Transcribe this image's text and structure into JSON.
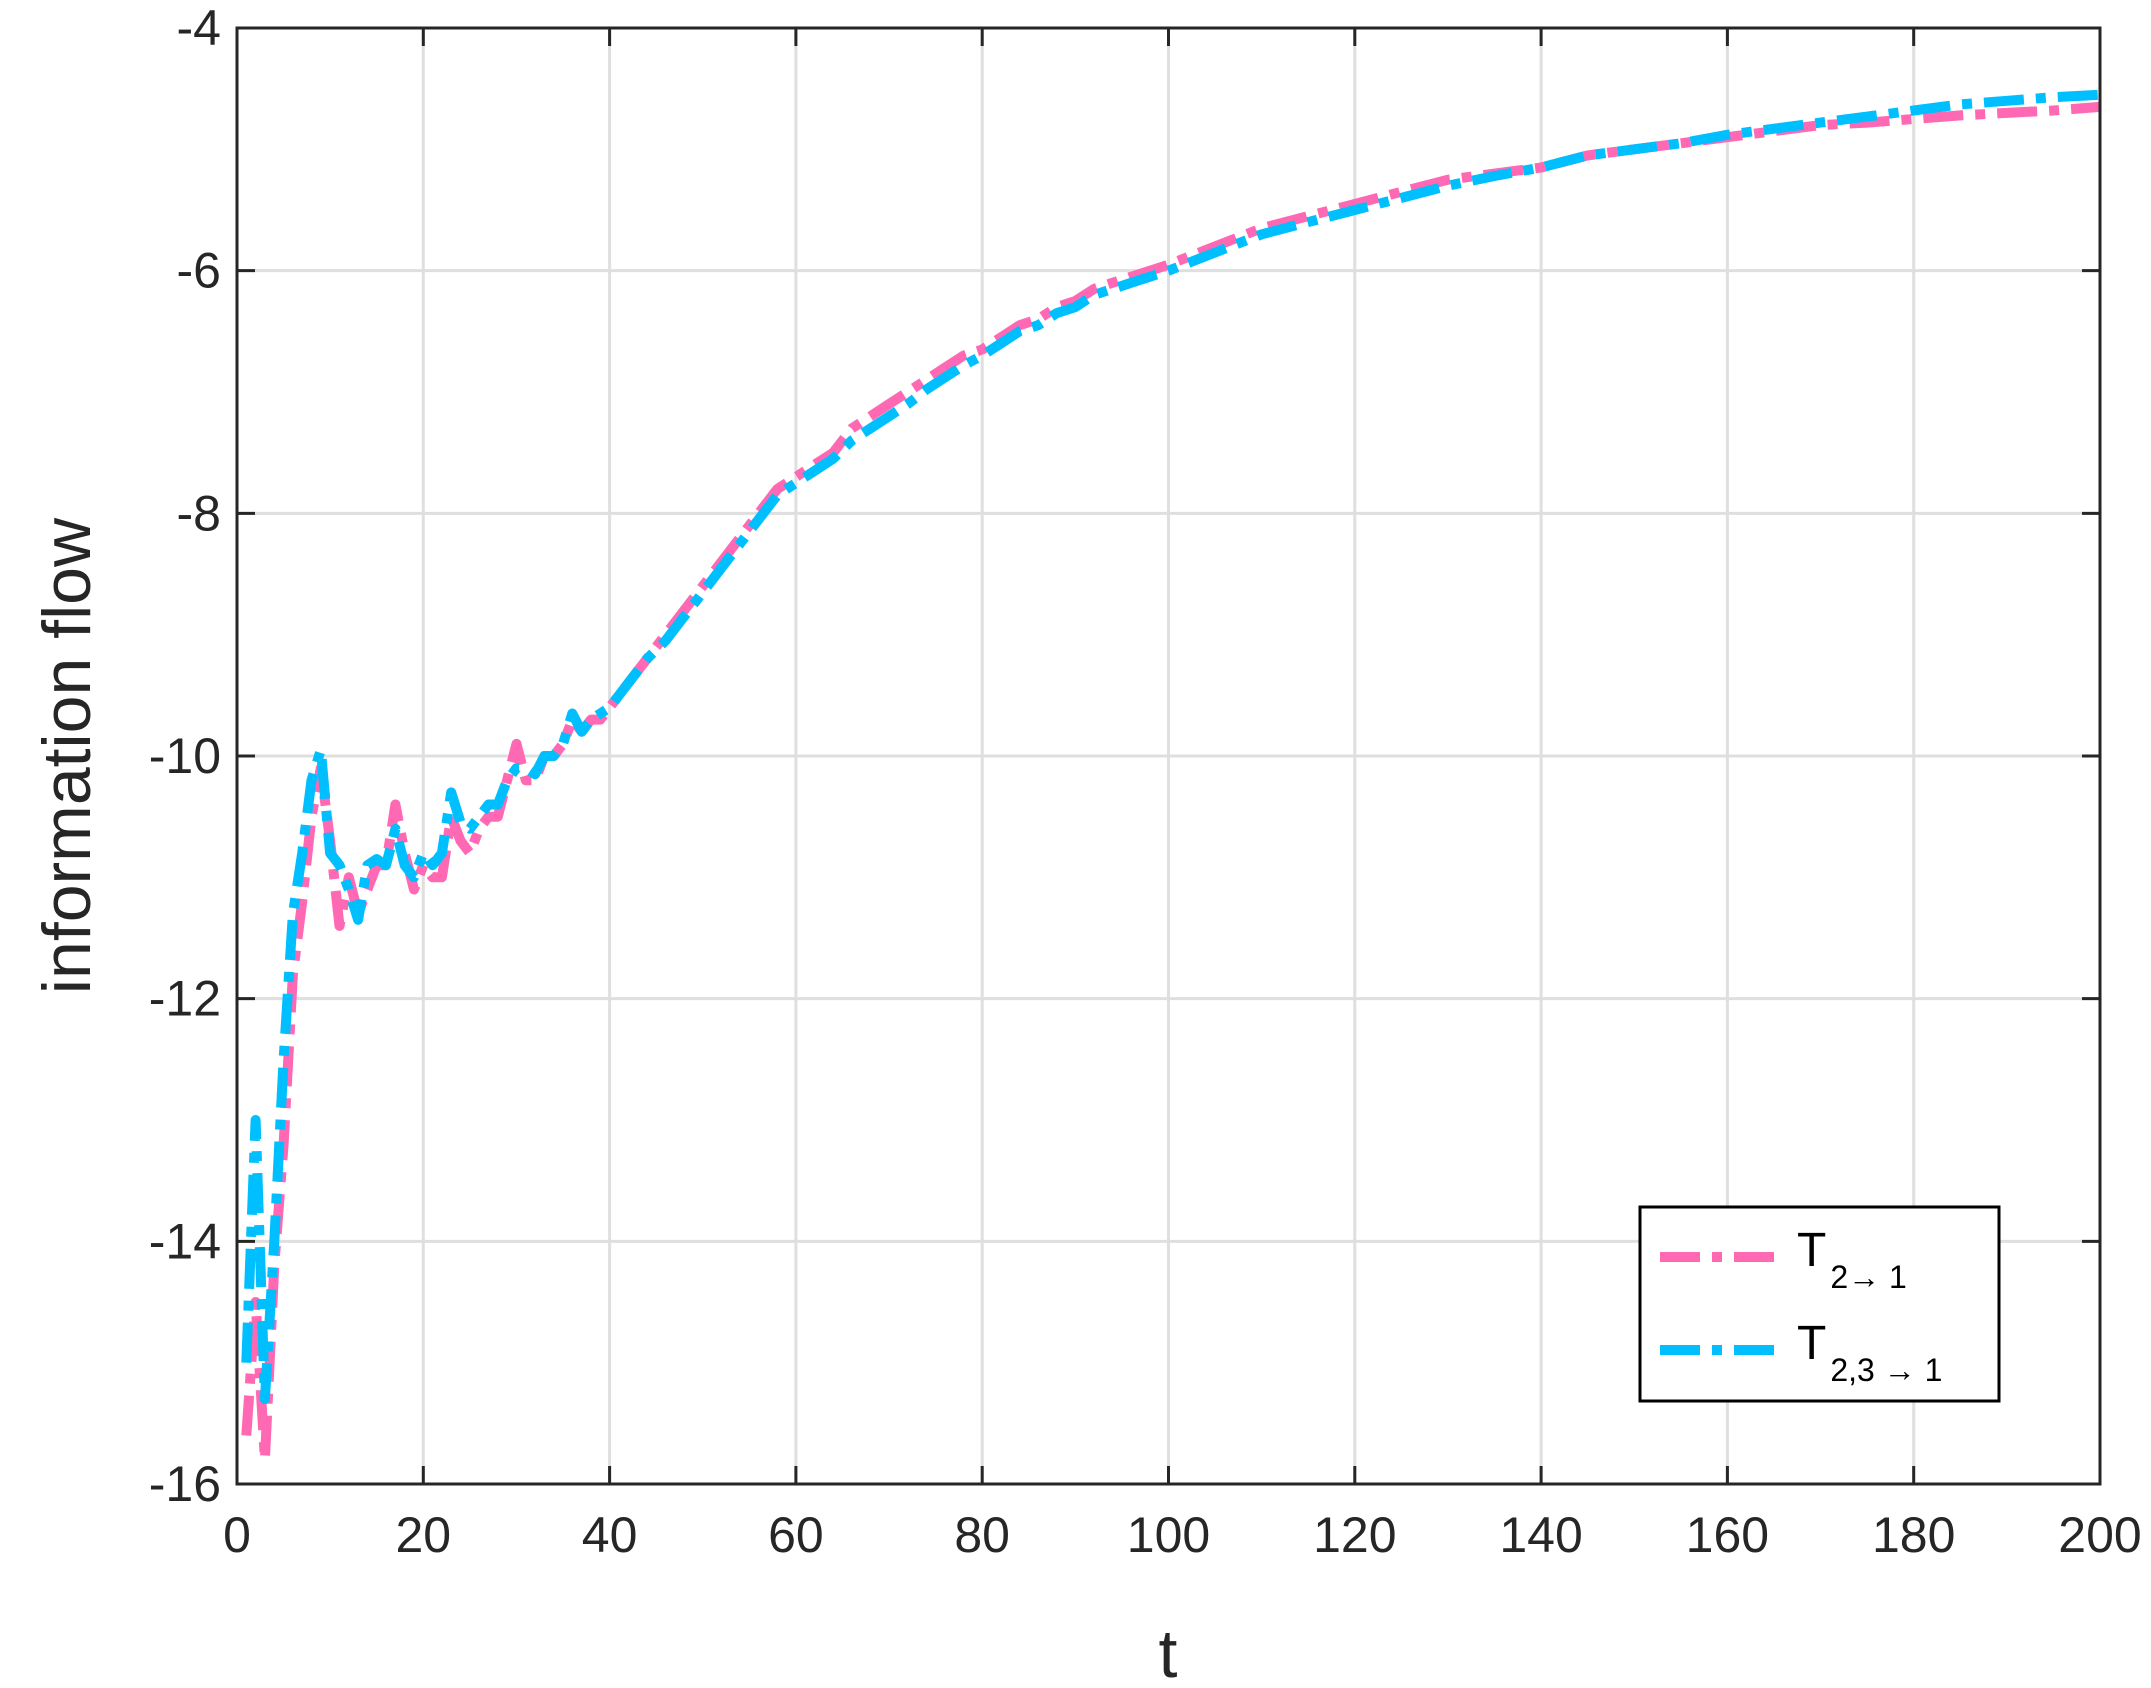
{
  "chart_data": {
    "type": "line",
    "xlabel": "t",
    "ylabel": "information flow",
    "xlim": [
      0,
      200
    ],
    "ylim": [
      -16,
      -4
    ],
    "xticks": [
      0,
      20,
      40,
      60,
      80,
      100,
      120,
      140,
      160,
      180,
      200
    ],
    "yticks": [
      -16,
      -14,
      -12,
      -10,
      -8,
      -6,
      -4
    ],
    "grid": true,
    "legend_position": "bottom-right",
    "series": [
      {
        "name": "T_{2→ 1}",
        "legend": {
          "main": "T",
          "sub": "2→ 1"
        },
        "color": "#ff69b4",
        "line_style": "dash-dot",
        "x": [
          1,
          2,
          3,
          4,
          5,
          6,
          7,
          8,
          9,
          10,
          11,
          12,
          13,
          14,
          15,
          16,
          17,
          18,
          19,
          20,
          21,
          22,
          23,
          24,
          25,
          26,
          27,
          28,
          29,
          30,
          31,
          32,
          33,
          34,
          35,
          36,
          37,
          38,
          39,
          40,
          42,
          44,
          46,
          48,
          50,
          52,
          54,
          56,
          58,
          60,
          62,
          64,
          66,
          68,
          70,
          72,
          74,
          76,
          78,
          80,
          82,
          84,
          86,
          88,
          90,
          92,
          94,
          96,
          98,
          100,
          105,
          110,
          115,
          120,
          125,
          130,
          135,
          140,
          145,
          150,
          155,
          160,
          165,
          170,
          175,
          180,
          185,
          190,
          195,
          200
        ],
        "y": [
          -15.6,
          -14.5,
          -15.8,
          -14.2,
          -13.2,
          -11.8,
          -11.2,
          -10.5,
          -10.1,
          -10.7,
          -11.4,
          -11.0,
          -11.3,
          -11.1,
          -10.9,
          -10.9,
          -10.4,
          -10.8,
          -11.1,
          -10.9,
          -11.0,
          -11.0,
          -10.5,
          -10.7,
          -10.8,
          -10.6,
          -10.5,
          -10.5,
          -10.2,
          -9.9,
          -10.2,
          -10.2,
          -10.0,
          -10.0,
          -9.9,
          -9.7,
          -9.8,
          -9.7,
          -9.7,
          -9.6,
          -9.4,
          -9.2,
          -9.0,
          -8.8,
          -8.6,
          -8.4,
          -8.2,
          -8.0,
          -7.8,
          -7.7,
          -7.6,
          -7.5,
          -7.3,
          -7.2,
          -7.1,
          -7.0,
          -6.9,
          -6.8,
          -6.7,
          -6.65,
          -6.55,
          -6.45,
          -6.4,
          -6.3,
          -6.25,
          -6.15,
          -6.1,
          -6.05,
          -6.0,
          -5.95,
          -5.8,
          -5.65,
          -5.55,
          -5.45,
          -5.35,
          -5.25,
          -5.2,
          -5.15,
          -5.05,
          -5.0,
          -4.95,
          -4.9,
          -4.85,
          -4.8,
          -4.78,
          -4.75,
          -4.72,
          -4.7,
          -4.68,
          -4.65
        ]
      },
      {
        "name": "T_{2,3 → 1}",
        "legend": {
          "main": "T",
          "sub": "2,3 → 1"
        },
        "color": "#00bfff",
        "line_style": "dash-dot",
        "x": [
          1,
          2,
          3,
          4,
          5,
          6,
          7,
          8,
          9,
          10,
          11,
          12,
          13,
          14,
          15,
          16,
          17,
          18,
          19,
          20,
          21,
          22,
          23,
          24,
          25,
          26,
          27,
          28,
          29,
          30,
          31,
          32,
          33,
          34,
          35,
          36,
          37,
          38,
          39,
          40,
          42,
          44,
          46,
          48,
          50,
          52,
          54,
          56,
          58,
          60,
          62,
          64,
          66,
          68,
          70,
          72,
          74,
          76,
          78,
          80,
          82,
          84,
          86,
          88,
          90,
          92,
          94,
          96,
          98,
          100,
          105,
          110,
          115,
          120,
          125,
          130,
          135,
          140,
          145,
          150,
          155,
          160,
          165,
          170,
          175,
          180,
          185,
          190,
          195,
          200
        ],
        "y": [
          -15.0,
          -13.0,
          -15.3,
          -14.0,
          -12.5,
          -11.3,
          -10.8,
          -10.2,
          -9.95,
          -10.8,
          -10.9,
          -11.1,
          -11.35,
          -10.9,
          -10.85,
          -10.9,
          -10.6,
          -10.9,
          -11.0,
          -10.8,
          -10.9,
          -10.8,
          -10.3,
          -10.55,
          -10.6,
          -10.5,
          -10.4,
          -10.4,
          -10.2,
          -10.1,
          -10.1,
          -10.15,
          -10.0,
          -10.0,
          -9.9,
          -9.65,
          -9.8,
          -9.7,
          -9.65,
          -9.6,
          -9.4,
          -9.2,
          -9.05,
          -8.85,
          -8.65,
          -8.45,
          -8.25,
          -8.05,
          -7.85,
          -7.75,
          -7.65,
          -7.55,
          -7.4,
          -7.3,
          -7.2,
          -7.1,
          -6.98,
          -6.88,
          -6.78,
          -6.7,
          -6.6,
          -6.5,
          -6.45,
          -6.35,
          -6.3,
          -6.2,
          -6.15,
          -6.1,
          -6.05,
          -6.0,
          -5.85,
          -5.7,
          -5.6,
          -5.5,
          -5.4,
          -5.3,
          -5.22,
          -5.15,
          -5.05,
          -5.0,
          -4.95,
          -4.88,
          -4.83,
          -4.78,
          -4.73,
          -4.68,
          -4.63,
          -4.6,
          -4.57,
          -4.55
        ]
      }
    ]
  }
}
